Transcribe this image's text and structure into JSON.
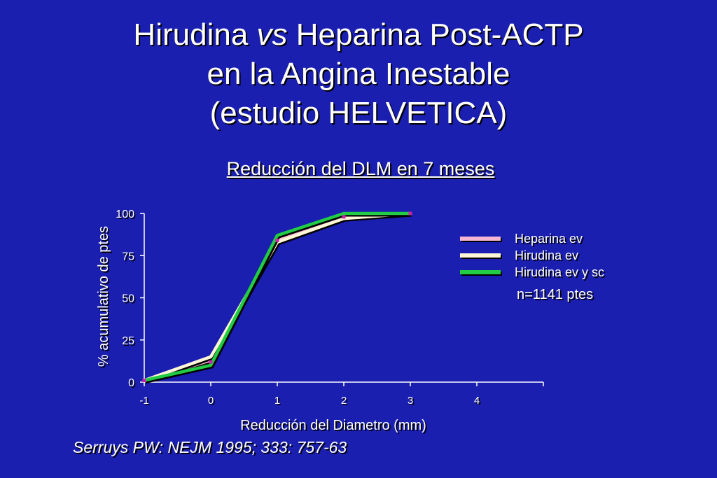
{
  "slide": {
    "title_lines": [
      {
        "before": "Hirudina ",
        "italic": "vs",
        "after": " Heparina Post-ACTP"
      },
      {
        "text": "en la Angina Inestable"
      },
      {
        "text": "(estudio HELVETICA)"
      }
    ],
    "subtitle": "Reducción del DLM en 7 meses",
    "n_label": "n=1141 ptes",
    "citation": "Serruys PW: NEJM 1995; 333: 757-63",
    "background_color": "#1a1fb0"
  },
  "chart_data": {
    "type": "line",
    "xlabel": "Reducción del Diametro (mm)",
    "ylabel": "% acumulativo de ptes",
    "xlim": [
      -1,
      5
    ],
    "ylim": [
      0,
      100
    ],
    "xticks": [
      -1,
      0,
      1,
      2,
      3,
      4
    ],
    "yticks": [
      0,
      25,
      50,
      75,
      100
    ],
    "grid": false,
    "legend_position": "right",
    "series": [
      {
        "name": "Heparina ev",
        "color": "#f4b6d2",
        "x": [
          -1,
          0,
          1,
          2,
          3
        ],
        "y": [
          1,
          13,
          84,
          98,
          100
        ]
      },
      {
        "name": "Hirudina ev",
        "color": "#fff6d8",
        "x": [
          -1,
          0,
          1,
          2,
          3
        ],
        "y": [
          1,
          15,
          83,
          97,
          100
        ]
      },
      {
        "name": "Hirudina ev y sc",
        "color": "#22cc44",
        "x": [
          -1,
          0,
          1,
          2,
          3
        ],
        "y": [
          1,
          10,
          87,
          100,
          100
        ]
      }
    ],
    "markers": {
      "color": "#cc22aa",
      "x": [
        -1,
        0,
        1,
        2,
        3
      ],
      "y": [
        1,
        12,
        84,
        98,
        100
      ]
    }
  }
}
